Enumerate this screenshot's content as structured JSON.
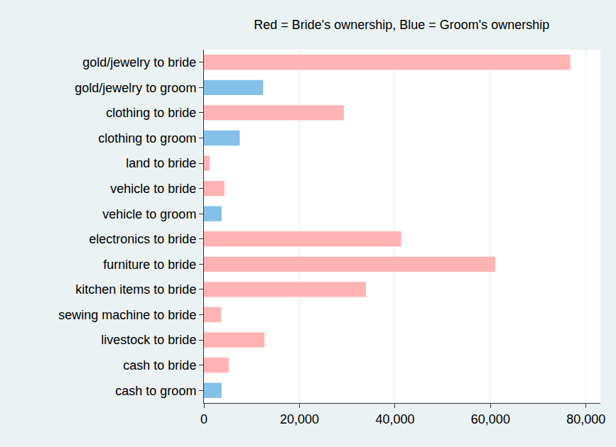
{
  "chart_data": {
    "type": "bar",
    "orientation": "horizontal",
    "title": "Red = Bride's ownership, Blue = Groom's ownership",
    "categories": [
      "gold/jewelry to bride",
      "gold/jewelry to groom",
      "clothing to bride",
      "clothing to groom",
      "land to bride",
      "vehicle to bride",
      "vehicle to groom",
      "electronics to bride",
      "furniture to bride",
      "kitchen items to bride",
      "sewing machine to bride",
      "livestock to bride",
      "cash to bride",
      "cash to groom"
    ],
    "values": [
      76700,
      12400,
      29300,
      7500,
      1200,
      4300,
      3700,
      41300,
      61000,
      33900,
      3600,
      12700,
      5200,
      3700
    ],
    "colors": [
      "#ffb3b3",
      "#85c0e9",
      "#ffb3b3",
      "#85c0e9",
      "#ffb3b3",
      "#ffb3b3",
      "#85c0e9",
      "#ffb3b3",
      "#ffb3b3",
      "#ffb3b3",
      "#ffb3b3",
      "#ffb3b3",
      "#ffb3b3",
      "#85c0e9"
    ],
    "xlim": [
      0,
      83000
    ],
    "xticks": [
      0,
      {
        "value": 20000,
        "label": "20,000"
      },
      {
        "value": 40000,
        "label": "40,000"
      },
      {
        "value": 60000,
        "label": "60,000"
      },
      {
        "value": 80000,
        "label": "80,000"
      }
    ],
    "grid": true
  }
}
